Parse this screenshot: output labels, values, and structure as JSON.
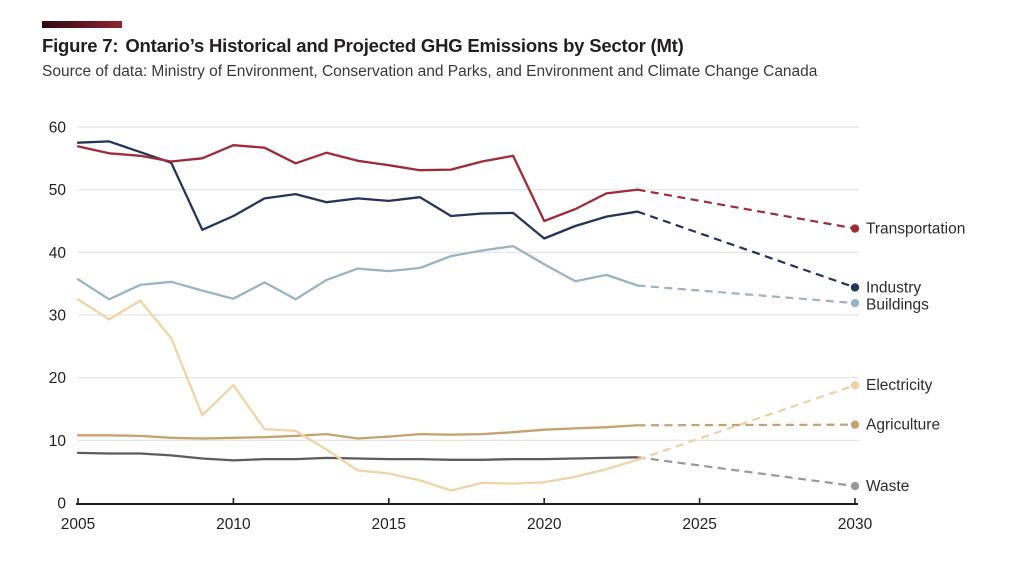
{
  "figure": {
    "title_prefix": "Figure 7:",
    "title_main": "Ontario’s Historical and Projected GHG Emissions by Sector (Mt)",
    "source": "Source of data: Ministry of Environment, Conservation and Parks, and Environment and Climate Change Canada",
    "accent_color": "#8f2433"
  },
  "chart_data": {
    "type": "line",
    "title": "Figure 7: Ontario’s Historical and Projected GHG Emissions by Sector (Mt)",
    "xlabel": "",
    "ylabel": "",
    "unit": "Mt",
    "xlim": [
      2005,
      2030
    ],
    "ylim": [
      0,
      60
    ],
    "x_ticks": [
      2005,
      2010,
      2015,
      2020,
      2025,
      2030
    ],
    "y_ticks": [
      0,
      10,
      20,
      30,
      40,
      50,
      60
    ],
    "grid": "horizontal",
    "legend_position": "right-end-labels",
    "historical_years": [
      2005,
      2006,
      2007,
      2008,
      2009,
      2010,
      2011,
      2012,
      2013,
      2014,
      2015,
      2016,
      2017,
      2018,
      2019,
      2020,
      2021,
      2022,
      2023
    ],
    "projection_start_year": 2023,
    "projection_year": 2030,
    "projection_style": "dashed",
    "axis_color": "#231f20",
    "gridline_color": "#e3e3e3",
    "series": [
      {
        "name": "Waste",
        "color": "#5c5d5f",
        "projected_color": "#97999b",
        "values": [
          8.0,
          7.9,
          7.9,
          7.6,
          7.1,
          6.8,
          7.0,
          7.0,
          7.2,
          7.1,
          7.0,
          7.0,
          6.9,
          6.9,
          7.0,
          7.0,
          7.1,
          7.2,
          7.3
        ],
        "projected_2030": 2.7
      },
      {
        "name": "Agriculture",
        "color": "#c7a06f",
        "projected_color": "#c7a06f",
        "values": [
          10.8,
          10.8,
          10.7,
          10.4,
          10.3,
          10.4,
          10.5,
          10.7,
          11.0,
          10.3,
          10.6,
          11.0,
          10.9,
          11.0,
          11.3,
          11.7,
          11.9,
          12.1,
          12.4
        ],
        "projected_2030": 12.5
      },
      {
        "name": "Electricity",
        "color": "#f2d3a7",
        "projected_color": "#f0cfa2",
        "values": [
          32.5,
          29.3,
          32.3,
          26.3,
          14.0,
          18.8,
          11.8,
          11.5,
          8.5,
          5.2,
          4.7,
          3.6,
          2.0,
          3.2,
          3.1,
          3.3,
          4.2,
          5.4,
          6.9
        ],
        "projected_2030": 18.8
      },
      {
        "name": "Buildings",
        "color": "#9ab4c4",
        "projected_color": "#9ab4c4",
        "values": [
          35.7,
          32.5,
          34.8,
          35.3,
          33.9,
          32.6,
          35.2,
          32.5,
          35.6,
          37.4,
          37.0,
          37.5,
          39.4,
          40.3,
          41.0,
          38.1,
          35.4,
          36.4,
          34.7
        ],
        "projected_2030": 31.9
      },
      {
        "name": "Industry",
        "color": "#24355c",
        "projected_color": "#24355c",
        "values": [
          57.5,
          57.7,
          56.0,
          54.3,
          43.6,
          45.8,
          48.6,
          49.3,
          48.0,
          48.6,
          48.2,
          48.8,
          45.8,
          46.2,
          46.3,
          42.2,
          44.2,
          45.7,
          46.5
        ],
        "projected_2030": 34.4
      },
      {
        "name": "Transportation",
        "color": "#a02a38",
        "projected_color": "#a02a38",
        "values": [
          56.9,
          55.8,
          55.4,
          54.5,
          55.0,
          57.1,
          56.7,
          54.2,
          55.9,
          54.6,
          53.9,
          53.1,
          53.2,
          54.5,
          55.4,
          45.0,
          46.9,
          49.4,
          50.0
        ],
        "projected_2030": 43.8
      }
    ]
  }
}
